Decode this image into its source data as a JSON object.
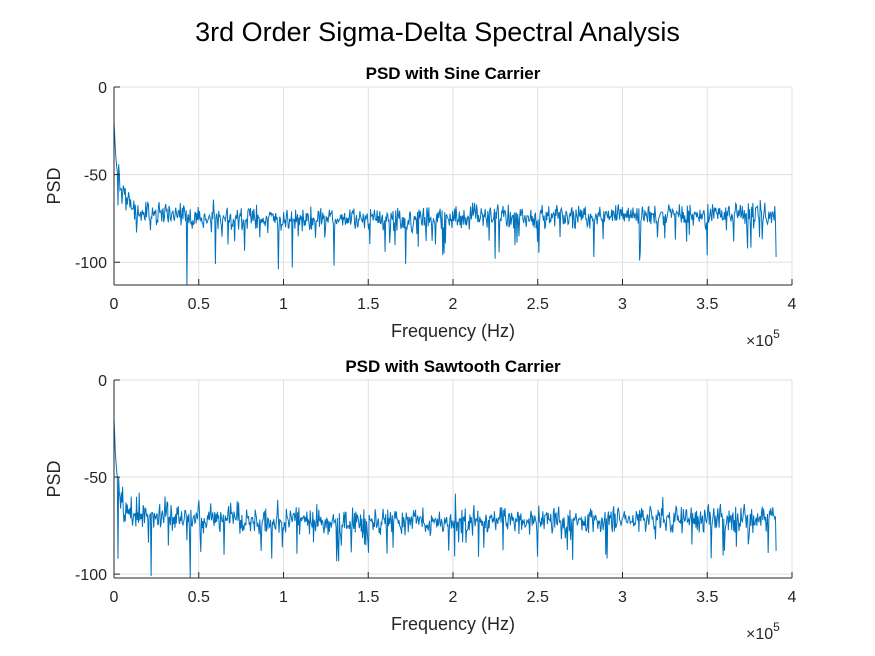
{
  "figure": {
    "suptitle": "3rd Order Sigma-Delta Spectral Analysis",
    "line_color": "#0072bd"
  },
  "chart_data": [
    {
      "type": "line",
      "title": "PSD with Sine Carrier",
      "xlabel": "Frequency (Hz)",
      "ylabel": "PSD",
      "x_exponent_label": "×10",
      "x_exponent": "5",
      "xlim": [
        0,
        400000
      ],
      "ylim": [
        -113,
        0
      ],
      "x_ticks": [
        0,
        50000,
        100000,
        150000,
        200000,
        250000,
        300000,
        350000,
        400000
      ],
      "x_tick_labels": [
        "0",
        "0.5",
        "1",
        "1.5",
        "2",
        "2.5",
        "3",
        "3.5",
        "4"
      ],
      "y_ticks": [
        0,
        -50,
        -100
      ],
      "y_tick_labels": [
        "0",
        "-50",
        "-100"
      ],
      "grid": true,
      "series": [
        {
          "x_range": [
            0,
            390625
          ],
          "num_points": 1000,
          "profile": [
            [
              0,
              -20
            ],
            [
              300,
              -25
            ],
            [
              800,
              -36
            ],
            [
              1500,
              -45
            ],
            [
              2500,
              -52
            ],
            [
              4000,
              -58
            ],
            [
              6000,
              -63
            ],
            [
              9000,
              -67
            ],
            [
              14000,
              -70
            ],
            [
              20000,
              -72
            ],
            [
              60000,
              -75
            ],
            [
              120000,
              -76
            ],
            [
              200000,
              -75
            ],
            [
              260000,
              -74
            ],
            [
              330000,
              -73
            ],
            [
              390625,
              -72
            ]
          ],
          "noise_amplitude": 5,
          "deep_dips": [
            [
              43000,
              -113
            ],
            [
              60000,
              -101
            ],
            [
              97000,
              -104
            ],
            [
              105000,
              -103
            ],
            [
              130000,
              -102
            ],
            [
              172000,
              -101
            ],
            [
              225000,
              -98
            ],
            [
              283000,
              -97
            ],
            [
              310000,
              -99
            ],
            [
              350000,
              -96
            ],
            [
              390625,
              -97
            ]
          ]
        }
      ]
    },
    {
      "type": "line",
      "title": "PSD with Sawtooth Carrier",
      "xlabel": "Frequency (Hz)",
      "ylabel": "PSD",
      "x_exponent_label": "×10",
      "x_exponent": "5",
      "xlim": [
        0,
        400000
      ],
      "ylim": [
        -102,
        0
      ],
      "x_ticks": [
        0,
        50000,
        100000,
        150000,
        200000,
        250000,
        300000,
        350000,
        400000
      ],
      "x_tick_labels": [
        "0",
        "0.5",
        "1",
        "1.5",
        "2",
        "2.5",
        "3",
        "3.5",
        "4"
      ],
      "y_ticks": [
        0,
        -50,
        -100
      ],
      "y_tick_labels": [
        "0",
        "-50",
        "-100"
      ],
      "grid": true,
      "series": [
        {
          "x_range": [
            0,
            390625
          ],
          "num_points": 1000,
          "profile": [
            [
              0,
              -20
            ],
            [
              300,
              -26
            ],
            [
              800,
              -38
            ],
            [
              1500,
              -46
            ],
            [
              2500,
              -55
            ],
            [
              4000,
              -62
            ],
            [
              6000,
              -66
            ],
            [
              9000,
              -68
            ],
            [
              14000,
              -69
            ],
            [
              20000,
              -70
            ],
            [
              60000,
              -72
            ],
            [
              120000,
              -73
            ],
            [
              200000,
              -73
            ],
            [
              260000,
              -72
            ],
            [
              330000,
              -72
            ],
            [
              390625,
              -71
            ]
          ],
          "noise_amplitude": 5,
          "deep_dips": [
            [
              2500,
              -92
            ],
            [
              22000,
              -101
            ],
            [
              45000,
              -102
            ],
            [
              65000,
              -90
            ],
            [
              93000,
              -92
            ],
            [
              150000,
              -89
            ],
            [
              215000,
              -91
            ],
            [
              250000,
              -91
            ],
            [
              290000,
              -90
            ],
            [
              360000,
              -88
            ],
            [
              390625,
              -88
            ]
          ],
          "spikes": [
            [
              5000,
              -55
            ],
            [
              10000,
              -60
            ],
            [
              15000,
              -58
            ],
            [
              30000,
              -60
            ],
            [
              50000,
              -62
            ]
          ]
        }
      ]
    }
  ]
}
